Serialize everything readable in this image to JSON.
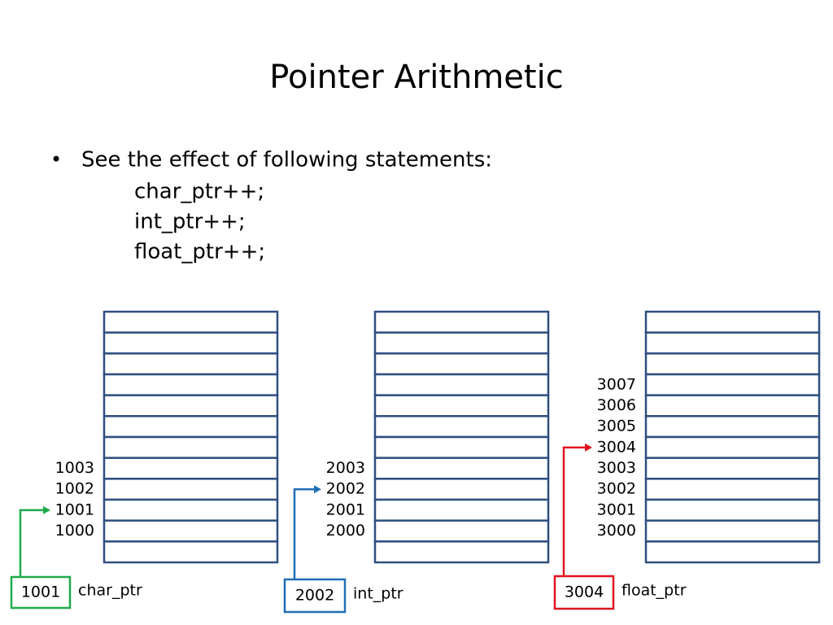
{
  "title": "Pointer Arithmetic",
  "bullet": "See the effect of following statements:",
  "statements": [
    "char_ptr++;",
    "int_ptr++;",
    "float_ptr++;"
  ],
  "diagrams": [
    {
      "addresses": [
        "1003",
        "1002",
        "1001",
        "1000"
      ],
      "pointer_value": "1001",
      "pointer_name": "char_ptr",
      "color": "#1faa4a"
    },
    {
      "addresses": [
        "2003",
        "2002",
        "2001",
        "2000"
      ],
      "pointer_value": "2002",
      "pointer_name": "int_ptr",
      "color": "#1f6fb5"
    },
    {
      "addresses": [
        "3007",
        "3006",
        "3005",
        "3004",
        "3003",
        "3002",
        "3001",
        "3000"
      ],
      "pointer_value": "3004",
      "pointer_name": "float_ptr",
      "color": "#e0141e"
    }
  ]
}
